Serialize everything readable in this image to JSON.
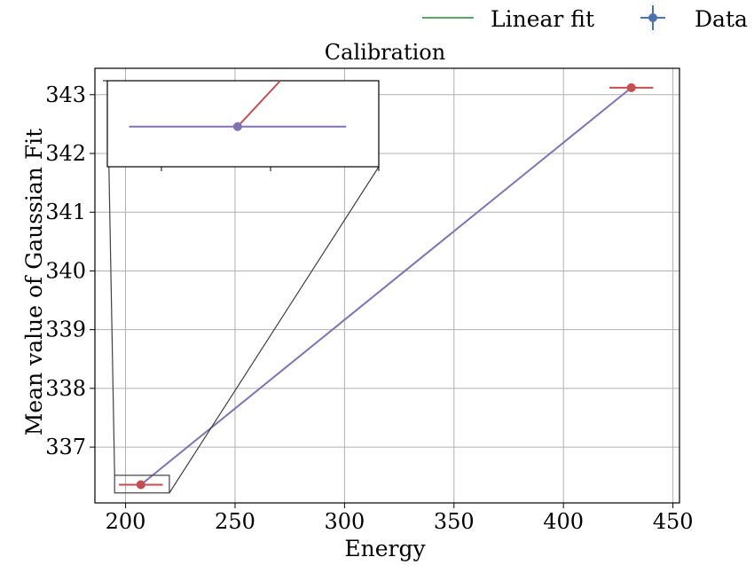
{
  "chart_data": {
    "type": "line",
    "title": "Calibration",
    "xlabel": "Energy",
    "ylabel": "Mean value of Gaussian Fit",
    "xlim": [
      186,
      453
    ],
    "ylim": [
      336.05,
      343.45
    ],
    "xticks": [
      200,
      250,
      300,
      350,
      400,
      450
    ],
    "yticks": [
      337,
      338,
      339,
      340,
      341,
      342,
      343
    ],
    "xtick_labels": [
      "200",
      "250",
      "300",
      "350",
      "400",
      "450"
    ],
    "ytick_labels": [
      "337",
      "338",
      "339",
      "340",
      "341",
      "342",
      "343"
    ],
    "grid": true,
    "legend": {
      "placement": "top-right, above plot",
      "entries": [
        {
          "label": "Linear fit",
          "color": "#55a868",
          "marker": "line"
        },
        {
          "label": "Data",
          "color": "#4c72b0",
          "marker": "errorbar-point"
        }
      ]
    },
    "series": [
      {
        "name": "Data",
        "kind": "errorbar",
        "color": "#c44e52",
        "points": [
          {
            "x": 207,
            "y": 336.36,
            "xerr": 10
          },
          {
            "x": 431,
            "y": 343.12,
            "xerr": 10
          }
        ]
      },
      {
        "name": "Linear fit",
        "kind": "line",
        "color": "#8172b2",
        "x": [
          207,
          431
        ],
        "y": [
          336.36,
          343.12
        ]
      }
    ],
    "inset": {
      "source_xlim": [
        195,
        220
      ],
      "source_ylim": [
        336.22,
        336.52
      ],
      "series_color_line": "#8172b2",
      "series_color_fit": "#c44e52"
    }
  },
  "colors": {
    "data_point": "#c44e52",
    "fit_line": "#8172b2",
    "legend_fit": "#55a868",
    "legend_data": "#4c72b0",
    "grid": "#b0b0b0"
  }
}
